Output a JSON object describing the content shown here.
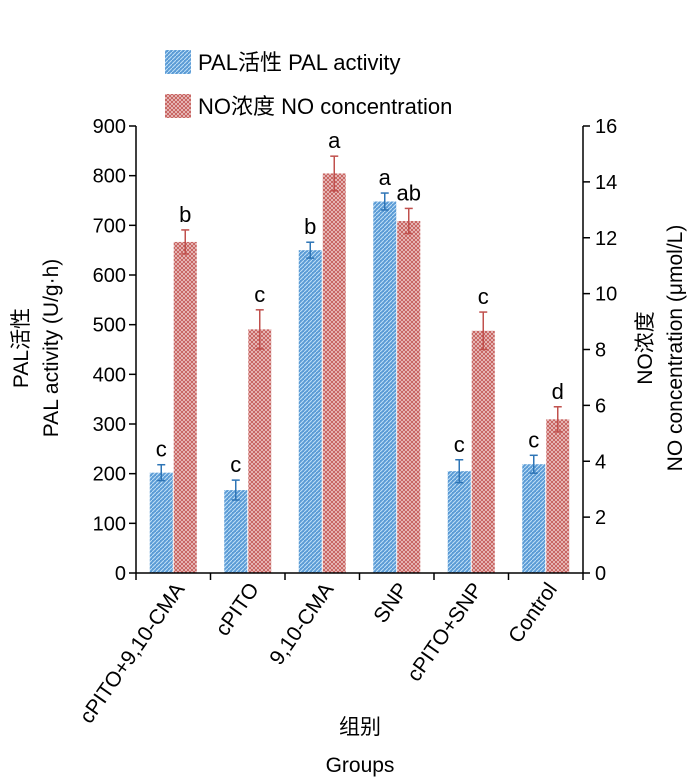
{
  "chart_data": {
    "type": "bar",
    "categories": [
      "cPITO+9,10-CMA",
      "cPITO",
      "9,10-CMA",
      "SNP",
      "cPITO+SNP",
      "Control"
    ],
    "series": [
      {
        "name": "PAL活性 PAL activity",
        "axis": "left",
        "values": [
          202,
          167,
          650,
          748,
          205,
          219
        ],
        "errors": [
          16,
          20,
          16,
          17,
          23,
          18
        ],
        "significance": [
          "c",
          "c",
          "b",
          "a",
          "c",
          "c"
        ],
        "color": "#5B9BD5"
      },
      {
        "name": "NO浓度  NO concentration",
        "axis": "right",
        "values": [
          11.85,
          8.72,
          14.3,
          12.6,
          8.67,
          5.5
        ],
        "errors": [
          0.43,
          0.7,
          0.62,
          0.45,
          0.67,
          0.45
        ],
        "significance": [
          "b",
          "c",
          "a",
          "ab",
          "c",
          "d"
        ],
        "color": "#C0504D"
      }
    ],
    "xlabel_cn": "组别",
    "xlabel": "Groups",
    "ylabel_left_cn": "PAL活性",
    "ylabel_left": "PAL activity (U/g·h)",
    "ylabel_right_cn": "NO浓度",
    "ylabel_right": "NO concentration (μmol/L)",
    "ylim_left": [
      0,
      900
    ],
    "ylim_right": [
      0,
      16
    ],
    "yticks_left": [
      0,
      100,
      200,
      300,
      400,
      500,
      600,
      700,
      800,
      900
    ],
    "yticks_right": [
      0,
      2,
      4,
      6,
      8,
      10,
      12,
      14,
      16
    ],
    "legend": {
      "position": "top-left",
      "entries": [
        "PAL活性 PAL activity",
        "NO浓度  NO concentration"
      ]
    }
  }
}
